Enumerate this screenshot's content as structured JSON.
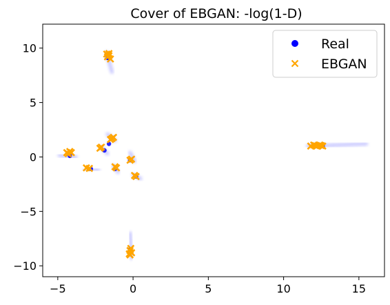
{
  "chart_data": {
    "type": "scatter",
    "title": "Cover of EBGAN: -log(1-D)",
    "xlabel": "",
    "ylabel": "",
    "xlim": [
      -6.0,
      16.7
    ],
    "ylim": [
      -11.0,
      12.2
    ],
    "xticks": [
      -5,
      0,
      5,
      10,
      15
    ],
    "yticks": [
      -10,
      -5,
      0,
      5,
      10
    ],
    "xtick_labels": [
      "−5",
      "0",
      "5",
      "10",
      "15"
    ],
    "ytick_labels": [
      "−10",
      "−5",
      "0",
      "5",
      "10"
    ],
    "grid": false,
    "legend_position": "top-right",
    "legend": [
      "Real",
      "EBGAN"
    ],
    "real_color": "#0000ff",
    "ebgan_color": "#ffa500",
    "series": [
      {
        "name": "Real",
        "marker": "circle",
        "color": "#0000ff",
        "clusters": [
          {
            "x": -1.7,
            "y": 9.1
          },
          {
            "x": -4.2,
            "y": 0.1
          },
          {
            "x": -1.6,
            "y": 1.2
          },
          {
            "x": -1.9,
            "y": 0.6
          },
          {
            "x": -0.2,
            "y": -0.3
          },
          {
            "x": -2.8,
            "y": -1.1
          },
          {
            "x": -1.2,
            "y": -1.1
          },
          {
            "x": 0.2,
            "y": -1.8
          },
          {
            "x": -0.2,
            "y": -8.5
          },
          {
            "x": 12.6,
            "y": 1.0
          }
        ]
      },
      {
        "name": "EBGAN",
        "marker": "x",
        "color": "#ffa500",
        "points": [
          {
            "x": -1.6,
            "y": 9.5
          },
          {
            "x": -1.7,
            "y": 9.2
          },
          {
            "x": -1.5,
            "y": 9.0
          },
          {
            "x": -1.6,
            "y": 9.3
          },
          {
            "x": -1.75,
            "y": 9.45
          },
          {
            "x": -4.4,
            "y": 0.4
          },
          {
            "x": -4.2,
            "y": 0.5
          },
          {
            "x": -4.3,
            "y": 0.3
          },
          {
            "x": -4.1,
            "y": 0.4
          },
          {
            "x": -1.4,
            "y": 1.7
          },
          {
            "x": -1.3,
            "y": 1.8
          },
          {
            "x": -1.5,
            "y": 1.6
          },
          {
            "x": -2.2,
            "y": 0.8
          },
          {
            "x": -2.1,
            "y": 0.9
          },
          {
            "x": -0.1,
            "y": -0.2
          },
          {
            "x": -0.2,
            "y": -0.3
          },
          {
            "x": -3.1,
            "y": -1.0
          },
          {
            "x": -2.9,
            "y": -1.05
          },
          {
            "x": -1.2,
            "y": -0.9
          },
          {
            "x": -1.1,
            "y": -1.0
          },
          {
            "x": 0.2,
            "y": -1.8
          },
          {
            "x": 0.1,
            "y": -1.7
          },
          {
            "x": -0.2,
            "y": -8.6
          },
          {
            "x": -0.1,
            "y": -8.8
          },
          {
            "x": -0.2,
            "y": -9.0
          },
          {
            "x": -0.15,
            "y": -8.4
          },
          {
            "x": -0.25,
            "y": -8.9
          },
          {
            "x": 11.8,
            "y": 1.0
          },
          {
            "x": 12.0,
            "y": 1.1
          },
          {
            "x": 12.2,
            "y": 1.0
          },
          {
            "x": 12.4,
            "y": 1.1
          },
          {
            "x": 12.6,
            "y": 1.0
          },
          {
            "x": 12.1,
            "y": 1.05
          },
          {
            "x": 12.5,
            "y": 1.05
          }
        ]
      }
    ],
    "smears": [
      {
        "x1": -1.75,
        "y1": 9.6,
        "x2": -1.4,
        "y2": 7.8
      },
      {
        "x1": -4.9,
        "y1": 0.15,
        "x2": -3.8,
        "y2": 0.0
      },
      {
        "x1": -3.2,
        "y1": -1.1,
        "x2": -2.3,
        "y2": -1.2
      },
      {
        "x1": -2.1,
        "y1": 0.9,
        "x2": -1.7,
        "y2": 0.3
      },
      {
        "x1": -1.7,
        "y1": 2.1,
        "x2": -1.2,
        "y2": 1.5
      },
      {
        "x1": -1.3,
        "y1": -0.8,
        "x2": -1.0,
        "y2": -1.4
      },
      {
        "x1": -0.2,
        "y1": 0.4,
        "x2": 0.1,
        "y2": -0.4
      },
      {
        "x1": 0.0,
        "y1": -1.6,
        "x2": 0.5,
        "y2": -2.0
      },
      {
        "x1": -0.2,
        "y1": -7.0,
        "x2": -0.1,
        "y2": -9.3
      },
      {
        "x1": 11.6,
        "y1": 1.0,
        "x2": 15.5,
        "y2": 1.2
      }
    ]
  }
}
